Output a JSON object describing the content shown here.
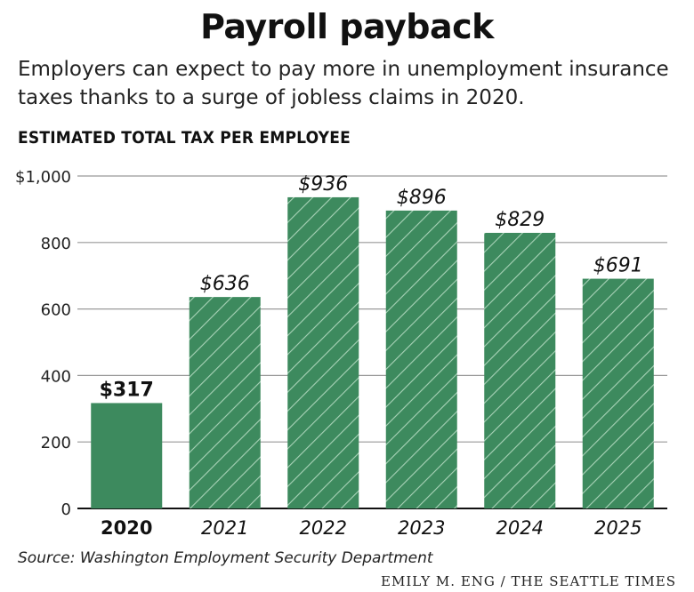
{
  "header": {
    "title": "Payroll payback",
    "subtitle": "Employers can expect to pay more in unemployment insurance taxes thanks to a surge of jobless claims in 2020.",
    "chart_label": "ESTIMATED TOTAL TAX PER EMPLOYEE"
  },
  "footer": {
    "source": "Source: Washington Employment Security Department",
    "credit": "EMILY M. ENG / THE SEATTLE TIMES"
  },
  "colors": {
    "bar": "#3d8a5e",
    "hatch": "#a9d3b8",
    "grid": "#999999",
    "text": "#111111"
  },
  "chart_data": {
    "type": "bar",
    "title": "ESTIMATED TOTAL TAX PER EMPLOYEE",
    "categories": [
      "2020",
      "2021",
      "2022",
      "2023",
      "2024",
      "2025"
    ],
    "values": [
      317,
      636,
      936,
      896,
      829,
      691
    ],
    "data_labels": [
      "$317",
      "$636",
      "$936",
      "$896",
      "$829",
      "$691"
    ],
    "estimated": [
      false,
      true,
      true,
      true,
      true,
      true
    ],
    "ylim": [
      0,
      1000
    ],
    "yticks": [
      0,
      200,
      400,
      600,
      800,
      1000
    ],
    "ytick_labels": [
      "0",
      "200",
      "400",
      "600",
      "800",
      "$1,000"
    ],
    "grid": true,
    "xlabel": "",
    "ylabel": ""
  }
}
